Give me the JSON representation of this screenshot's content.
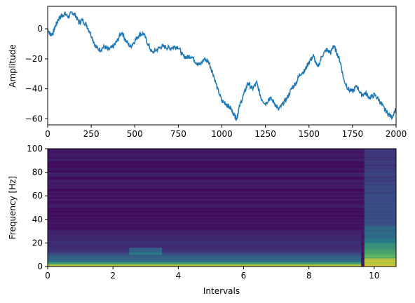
{
  "chart_data": [
    {
      "type": "line",
      "title": "",
      "xlabel": "",
      "ylabel": "Amplitude",
      "xlim": [
        0,
        2000
      ],
      "ylim": [
        -64,
        15
      ],
      "xticks": [
        0,
        250,
        500,
        750,
        1000,
        1250,
        1500,
        1750,
        2000
      ],
      "yticks": [
        0,
        -20,
        -40,
        -60
      ],
      "xtick_labels": [
        "0",
        "250",
        "500",
        "750",
        "1000",
        "1250",
        "1500",
        "1750",
        "2000"
      ],
      "ytick_labels": [
        "0",
        "−20",
        "−40",
        "−60"
      ],
      "grid": false,
      "series": [
        {
          "color": "#1f77b4",
          "x": [
            0,
            15,
            30,
            45,
            60,
            80,
            100,
            120,
            140,
            160,
            180,
            200,
            225,
            250,
            275,
            300,
            325,
            350,
            375,
            400,
            425,
            450,
            475,
            500,
            525,
            550,
            575,
            600,
            625,
            650,
            675,
            700,
            725,
            750,
            775,
            800,
            825,
            850,
            875,
            900,
            925,
            950,
            975,
            1000,
            1025,
            1050,
            1075,
            1085,
            1100,
            1125,
            1150,
            1175,
            1200,
            1225,
            1250,
            1275,
            1300,
            1325,
            1350,
            1375,
            1400,
            1425,
            1450,
            1475,
            1500,
            1525,
            1550,
            1575,
            1600,
            1625,
            1640,
            1660,
            1680,
            1700,
            1725,
            1750,
            1775,
            1800,
            1825,
            1850,
            1875,
            1900,
            1925,
            1950,
            1975,
            2000
          ],
          "y": [
            0,
            -4,
            -3,
            2,
            6,
            9,
            10,
            8,
            11,
            9,
            4,
            6,
            2,
            -4,
            -12,
            -14,
            -12,
            -14,
            -12,
            -8,
            -2,
            -8,
            -12,
            -8,
            -4,
            -3,
            -10,
            -16,
            -14,
            -12,
            -12,
            -13,
            -12,
            -12,
            -18,
            -19,
            -18,
            -22,
            -24,
            -20,
            -22,
            -30,
            -40,
            -48,
            -50,
            -53,
            -58,
            -60,
            -52,
            -44,
            -36,
            -40,
            -36,
            -46,
            -50,
            -46,
            -49,
            -54,
            -50,
            -46,
            -40,
            -36,
            -30,
            -28,
            -22,
            -18,
            -26,
            -18,
            -14,
            -16,
            -11,
            -16,
            -22,
            -34,
            -40,
            -42,
            -38,
            -44,
            -43,
            -46,
            -44,
            -47,
            -52,
            -56,
            -59,
            -53
          ]
        }
      ]
    },
    {
      "type": "heatmap",
      "title": "",
      "xlabel": "Intervals",
      "ylabel": "Frequency [Hz]",
      "xlim": [
        0,
        10.67
      ],
      "ylim": [
        0,
        100
      ],
      "xticks": [
        0,
        2,
        4,
        6,
        8,
        10
      ],
      "yticks": [
        0,
        20,
        40,
        60,
        80,
        100
      ],
      "xtick_labels": [
        "0",
        "2",
        "4",
        "6",
        "8",
        "10"
      ],
      "ytick_labels": [
        "0",
        "20",
        "40",
        "60",
        "80",
        "100"
      ],
      "colormap": "viridis",
      "value_range": [
        0,
        1
      ],
      "bands": [
        {
          "from_x": 0,
          "to_x": 9.6,
          "from_f": 0,
          "to_f": 4,
          "intensity": 0.95
        },
        {
          "from_x": 0,
          "to_x": 9.6,
          "from_f": 4,
          "to_f": 12,
          "intensity": 0.42
        },
        {
          "from_x": 0,
          "to_x": 9.6,
          "from_f": 12,
          "to_f": 30,
          "intensity": 0.18
        },
        {
          "from_x": 2.5,
          "to_x": 3.5,
          "from_f": 10,
          "to_f": 16,
          "intensity": 0.45
        },
        {
          "from_x": 9.7,
          "to_x": 10.67,
          "from_f": 0,
          "to_f": 20,
          "intensity": 1.0
        },
        {
          "from_x": 9.7,
          "to_x": 10.67,
          "from_f": 20,
          "to_f": 35,
          "intensity": 0.55
        },
        {
          "from_x": 9.7,
          "to_x": 10.67,
          "from_f": 35,
          "to_f": 100,
          "intensity": 0.3
        }
      ]
    }
  ]
}
